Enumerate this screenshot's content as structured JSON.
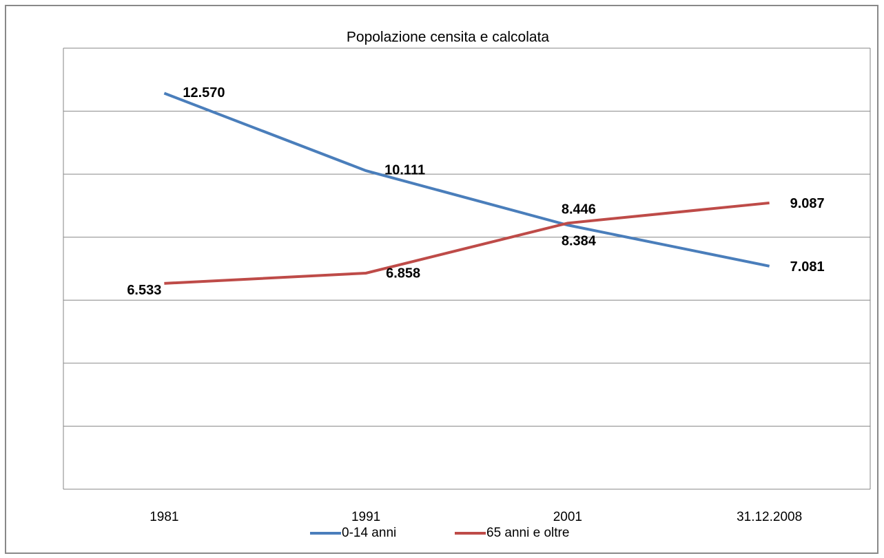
{
  "chart_data": {
    "type": "line",
    "title": "Popolazione censita e calcolata",
    "categories": [
      "1981",
      "1991",
      "2001",
      "31.12.2008"
    ],
    "series": [
      {
        "name": "0-14 anni",
        "color": "#4a7ebb",
        "values": [
          12570,
          10111,
          8384,
          7081
        ],
        "value_labels": [
          "12.570",
          "10.111",
          "8.384",
          "7.081"
        ]
      },
      {
        "name": "65 anni e oltre",
        "color": "#be4b48",
        "values": [
          6533,
          6858,
          8446,
          9087
        ],
        "value_labels": [
          "6.533",
          "6.858",
          "8.446",
          "9.087"
        ]
      }
    ],
    "ylim": [
      0,
      14000
    ],
    "yticks": [
      0,
      2000,
      4000,
      6000,
      8000,
      10000,
      12000,
      14000
    ],
    "grid": true,
    "legend": "bottom"
  }
}
